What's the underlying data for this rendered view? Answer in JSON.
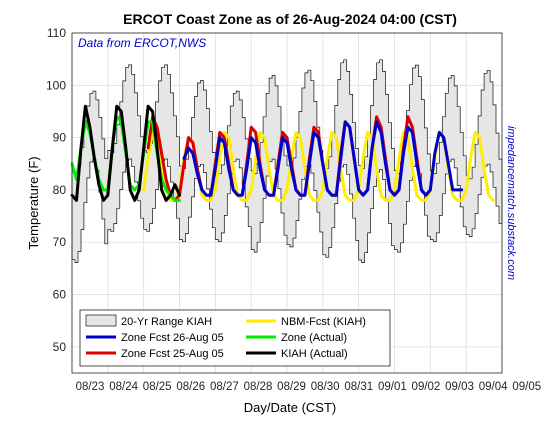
{
  "chart_data": {
    "type": "line",
    "title": "ERCOT Coast Zone as of 26-Aug-2024 04:00 (CST)",
    "source_note": "Data from ERCOT,NWS",
    "side_note": "impedancematch.substack.com",
    "xlabel": "Day/Date (CST)",
    "ylabel": "Temperature (F)",
    "xlim": [
      0,
      12
    ],
    "ylim": [
      45,
      110
    ],
    "yticks": [
      50,
      60,
      70,
      80,
      90,
      100,
      110
    ],
    "xtick_labels": [
      "08/23",
      "08/24",
      "08/25",
      "08/26",
      "08/27",
      "08/28",
      "08/29",
      "08/30",
      "08/31",
      "09/01",
      "09/02",
      "09/03",
      "09/04",
      "09/05"
    ],
    "xtick_positions": [
      0,
      1,
      2,
      3,
      4,
      5,
      6,
      7,
      8,
      9,
      10,
      11,
      12,
      13
    ],
    "grid": true,
    "legend_placement": "bottom-left",
    "range_band": {
      "name": "20-Yr Range KIAH",
      "color": "#e6e6e6",
      "step_hours": 2,
      "max_peaks": [
        99,
        104,
        104,
        101,
        99,
        102,
        103,
        105,
        105,
        104,
        102,
        103,
        103
      ],
      "max_troughs": [
        83,
        87,
        87,
        84,
        83,
        83,
        84,
        84,
        84,
        83,
        83,
        82,
        82
      ],
      "min_peaks": [
        86,
        86,
        86,
        85,
        86,
        86,
        85,
        85,
        84,
        85,
        86,
        85,
        85
      ],
      "min_troughs": [
        66,
        72,
        72,
        70,
        70,
        68,
        69,
        67,
        66,
        68,
        70,
        71,
        71
      ]
    },
    "series": [
      {
        "name": "KIAH (Actual)",
        "color": "#000000",
        "width": 3,
        "x": [
          0.0,
          0.125,
          0.25,
          0.375,
          0.5,
          0.625,
          0.75,
          0.875,
          1.0,
          1.125,
          1.25,
          1.375,
          1.5,
          1.625,
          1.75,
          1.875,
          2.0,
          2.125,
          2.25,
          2.375,
          2.5,
          2.625,
          2.75,
          2.875,
          3.0
        ],
        "y": [
          79,
          78,
          88,
          96,
          92,
          86,
          81,
          78,
          79,
          88,
          96,
          95,
          88,
          80,
          78,
          80,
          88,
          96,
          95,
          88,
          80,
          78,
          79,
          81,
          79
        ]
      },
      {
        "name": "Zone (Actual)",
        "color": "#00ee00",
        "width": 3,
        "x": [
          0.0,
          0.125,
          0.25,
          0.375,
          0.5,
          0.625,
          0.75,
          0.875,
          1.0,
          1.125,
          1.25,
          1.375,
          1.5,
          1.625,
          1.75,
          1.875,
          2.0,
          2.125,
          2.25,
          2.375,
          2.5,
          2.625,
          2.75,
          2.875,
          3.0
        ],
        "y": [
          85,
          82,
          88,
          93,
          91,
          86,
          82,
          80,
          80,
          88,
          94,
          93,
          87,
          81,
          80,
          81,
          87,
          93,
          93,
          87,
          82,
          80,
          79,
          78,
          78
        ]
      },
      {
        "name": "Zone Fcst 25-Aug 05",
        "color": "#dd0000",
        "width": 3,
        "x": [
          2.125,
          2.25,
          2.375,
          2.5,
          2.625,
          2.75,
          2.875,
          3.0,
          3.125,
          3.25,
          3.375,
          3.5,
          3.625,
          3.75,
          3.875,
          4.0,
          4.125,
          4.25,
          4.375,
          4.5,
          4.625,
          4.75,
          4.875,
          5.0,
          5.125,
          5.25,
          5.375,
          5.5,
          5.625,
          5.75,
          5.875,
          6.0,
          6.125,
          6.25,
          6.375,
          6.5,
          6.625,
          6.75,
          6.875,
          7.0,
          7.125,
          7.25,
          7.375,
          7.5,
          7.625,
          7.75,
          7.875,
          8.0,
          8.125,
          8.25,
          8.375,
          8.5,
          8.625,
          8.75,
          8.875,
          9.0,
          9.125,
          9.25,
          9.375,
          9.5,
          9.625,
          9.75,
          9.875,
          10.0
        ],
        "y": [
          88,
          94,
          92,
          87,
          82,
          79,
          78,
          79,
          85,
          90,
          89,
          84,
          80,
          79,
          79,
          85,
          91,
          90,
          85,
          80,
          79,
          79,
          85,
          92,
          91,
          85,
          80,
          79,
          79,
          85,
          91,
          90,
          85,
          80,
          79,
          79,
          86,
          92,
          91,
          85,
          80,
          79,
          79,
          87,
          93,
          92,
          86,
          80,
          79,
          80,
          88,
          94,
          92,
          86,
          80,
          79,
          80,
          88,
          94,
          92,
          86,
          80,
          79,
          80
        ]
      },
      {
        "name": "Zone Fcst 26-Aug 05",
        "color": "#0000cc",
        "width": 3,
        "x": [
          3.125,
          3.25,
          3.375,
          3.5,
          3.625,
          3.75,
          3.875,
          4.0,
          4.125,
          4.25,
          4.375,
          4.5,
          4.625,
          4.75,
          4.875,
          5.0,
          5.125,
          5.25,
          5.375,
          5.5,
          5.625,
          5.75,
          5.875,
          6.0,
          6.125,
          6.25,
          6.375,
          6.5,
          6.625,
          6.75,
          6.875,
          7.0,
          7.125,
          7.25,
          7.375,
          7.5,
          7.625,
          7.75,
          7.875,
          8.0,
          8.125,
          8.25,
          8.375,
          8.5,
          8.625,
          8.75,
          8.875,
          9.0,
          9.125,
          9.25,
          9.375,
          9.5,
          9.625,
          9.75,
          9.875,
          10.0,
          10.125,
          10.25,
          10.375,
          10.5,
          10.625,
          10.75,
          10.875
        ],
        "y": [
          86,
          88,
          87,
          83,
          80,
          79,
          79,
          84,
          90,
          89,
          84,
          80,
          79,
          79,
          84,
          90,
          89,
          84,
          80,
          79,
          79,
          84,
          90,
          89,
          84,
          80,
          79,
          79,
          85,
          91,
          90,
          85,
          80,
          79,
          79,
          86,
          93,
          92,
          86,
          80,
          79,
          80,
          88,
          93,
          91,
          85,
          80,
          79,
          80,
          87,
          92,
          91,
          85,
          80,
          79,
          80,
          87,
          91,
          90,
          85,
          80,
          80,
          80
        ]
      },
      {
        "name": "NBM-Fcst (KIAH)",
        "color": "#ffee00",
        "width": 3,
        "x": [
          2.0,
          2.125,
          2.25,
          2.375,
          2.5,
          2.625,
          2.75,
          2.875,
          3.0,
          3.125,
          3.25,
          3.375,
          3.5,
          3.625,
          3.75,
          3.875,
          4.0,
          4.125,
          4.25,
          4.375,
          4.5,
          4.625,
          4.75,
          4.875,
          5.0,
          5.125,
          5.25,
          5.375,
          5.5,
          5.625,
          5.75,
          5.875,
          6.0,
          6.125,
          6.25,
          6.375,
          6.5,
          6.625,
          6.75,
          6.875,
          7.0,
          7.125,
          7.25,
          7.375,
          7.5,
          7.625,
          7.75,
          7.875,
          8.0,
          8.125,
          8.25,
          8.375,
          8.5,
          8.625,
          8.75,
          8.875,
          9.0,
          9.125,
          9.25,
          9.375,
          9.5,
          9.625,
          9.75,
          9.875,
          10.0,
          10.125,
          10.25,
          10.375,
          10.5,
          10.625,
          10.75,
          10.875,
          11.0,
          11.125,
          11.25,
          11.375,
          11.5,
          11.625,
          11.75
        ],
        "y": [
          80,
          86,
          91,
          90,
          85,
          80,
          78,
          78,
          80,
          86,
          90,
          89,
          84,
          79,
          78,
          78,
          80,
          86,
          91,
          90,
          84,
          79,
          78,
          78,
          80,
          86,
          91,
          90,
          84,
          79,
          78,
          78,
          80,
          86,
          91,
          90,
          84,
          79,
          78,
          78,
          80,
          86,
          91,
          90,
          84,
          79,
          78,
          78,
          80,
          86,
          91,
          90,
          84,
          79,
          78,
          78,
          80,
          86,
          91,
          90,
          84,
          79,
          78,
          78,
          80,
          86,
          91,
          90,
          84,
          79,
          78,
          78,
          80,
          86,
          91,
          90,
          84,
          79,
          78
        ]
      }
    ],
    "legend": [
      {
        "label": "20-Yr Range KIAH",
        "kind": "patch",
        "color": "#e6e6e6"
      },
      {
        "label": "NBM-Fcst (KIAH)",
        "kind": "line",
        "color": "#ffee00"
      },
      {
        "label": "Zone Fcst 26-Aug 05",
        "kind": "line",
        "color": "#0000cc"
      },
      {
        "label": "Zone (Actual)",
        "kind": "line",
        "color": "#00ee00"
      },
      {
        "label": "Zone Fcst 25-Aug 05",
        "kind": "line",
        "color": "#dd0000"
      },
      {
        "label": "KIAH (Actual)",
        "kind": "line",
        "color": "#000000"
      }
    ]
  }
}
